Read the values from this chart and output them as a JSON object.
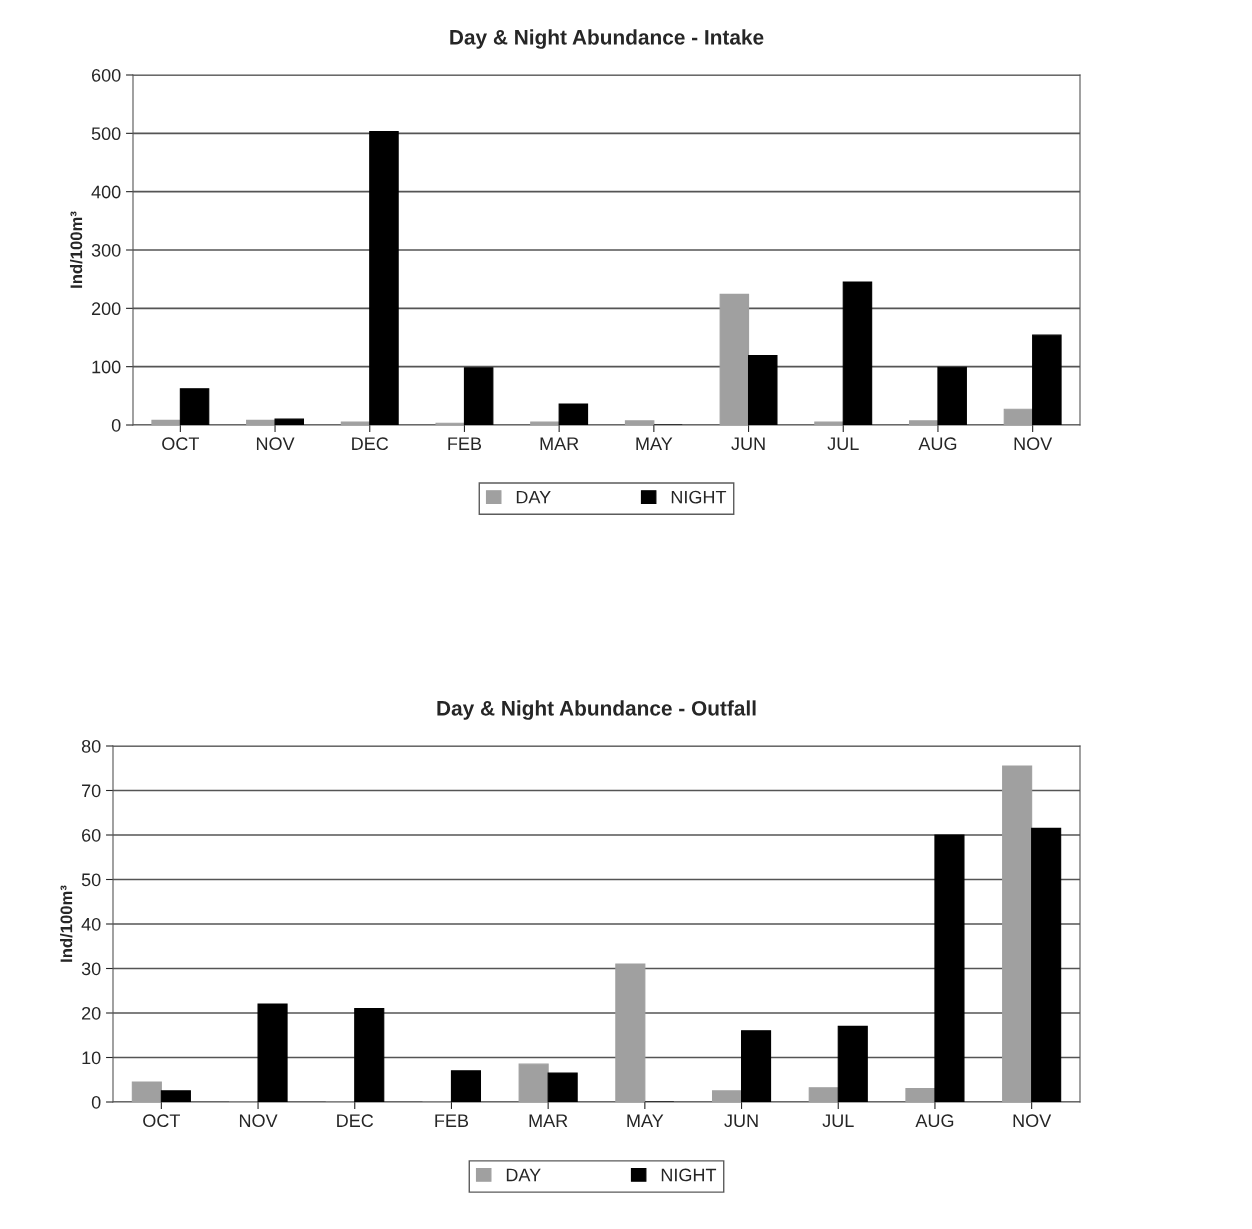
{
  "chart_data": [
    {
      "type": "bar",
      "title": "Day & Night Abundance - Intake",
      "ylabel": "Ind/100m³",
      "categories": [
        "OCT",
        "NOV",
        "DEC",
        "FEB",
        "MAR",
        "MAY",
        "JUN",
        "JUL",
        "AUG",
        "NOV"
      ],
      "series": [
        {
          "name": "DAY",
          "color": "#a0a0a0",
          "values": [
            8,
            8,
            5,
            3,
            5,
            7,
            224,
            5,
            7,
            27
          ]
        },
        {
          "name": "NIGHT",
          "color": "#000000",
          "values": [
            62,
            10,
            503,
            98,
            36,
            0,
            119,
            245,
            99,
            154
          ]
        }
      ],
      "ylim": [
        0,
        600
      ],
      "yticks": [
        0,
        100,
        200,
        300,
        400,
        500,
        600
      ],
      "grid": "y",
      "legend": "bottom"
    },
    {
      "type": "bar",
      "title": "Day & Night Abundance - Outfall",
      "ylabel": "Ind/100m³",
      "categories": [
        "OCT",
        "NOV",
        "DEC",
        "FEB",
        "MAR",
        "MAY",
        "JUN",
        "JUL",
        "AUG",
        "NOV"
      ],
      "series": [
        {
          "name": "DAY",
          "color": "#a0a0a0",
          "values": [
            4.5,
            0,
            0,
            0,
            8.5,
            31,
            2.5,
            3.2,
            3,
            75.5
          ]
        },
        {
          "name": "NIGHT",
          "color": "#000000",
          "values": [
            2.5,
            22,
            21,
            7,
            6.5,
            0,
            16,
            17,
            60,
            61.5
          ]
        }
      ],
      "ylim": [
        0,
        80
      ],
      "yticks": [
        0,
        10,
        20,
        30,
        40,
        50,
        60,
        70,
        80
      ],
      "grid": "y",
      "legend": "bottom"
    }
  ]
}
